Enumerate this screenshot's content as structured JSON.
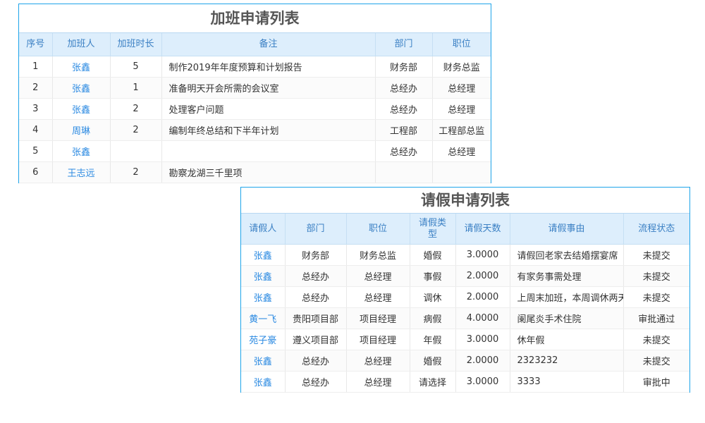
{
  "overtime": {
    "title": "加班申请列表",
    "columns": [
      "序号",
      "加班人",
      "加班时长",
      "备注",
      "部门",
      "职位"
    ],
    "rows": [
      [
        "1",
        "张鑫",
        "5",
        "制作2019年年度预算和计划报告",
        "财务部",
        "财务总监"
      ],
      [
        "2",
        "张鑫",
        "1",
        "准备明天开会所需的会议室",
        "总经办",
        "总经理"
      ],
      [
        "3",
        "张鑫",
        "2",
        "处理客户问题",
        "总经办",
        "总经理"
      ],
      [
        "4",
        "周琳",
        "2",
        "编制年终总结和下半年计划",
        "工程部",
        "工程部总监"
      ],
      [
        "5",
        "张鑫",
        "",
        "",
        "总经办",
        "总经理"
      ],
      [
        "6",
        "王志远",
        "2",
        "勘察龙湖三千里项",
        "",
        ""
      ]
    ]
  },
  "leave": {
    "title": "请假申请列表",
    "columns": [
      "请假人",
      "部门",
      "职位",
      "请假类型",
      "请假天数",
      "请假事由",
      "流程状态"
    ],
    "rows": [
      [
        "张鑫",
        "财务部",
        "财务总监",
        "婚假",
        "3.0000",
        "请假回老家去结婚摆宴席",
        "未提交"
      ],
      [
        "张鑫",
        "总经办",
        "总经理",
        "事假",
        "2.0000",
        "有家务事需处理",
        "未提交"
      ],
      [
        "张鑫",
        "总经办",
        "总经理",
        "调休",
        "2.0000",
        "上周末加班，本周调休两天",
        "未提交"
      ],
      [
        "黄一飞",
        "贵阳项目部",
        "项目经理",
        "病假",
        "4.0000",
        "阑尾炎手术住院",
        "审批通过"
      ],
      [
        "苑子豪",
        "遵义项目部",
        "项目经理",
        "年假",
        "3.0000",
        "休年假",
        "未提交"
      ],
      [
        "张鑫",
        "总经办",
        "总经理",
        "婚假",
        "2.0000",
        "2323232",
        "未提交"
      ],
      [
        "张鑫",
        "总经办",
        "总经理",
        "请选择",
        "3.0000",
        "3333",
        "审批中"
      ]
    ]
  },
  "colors": {
    "border": "#1ea4e9",
    "header_bg": "#ddeefc",
    "header_text": "#3b80c4",
    "link": "#2b8ae2"
  }
}
